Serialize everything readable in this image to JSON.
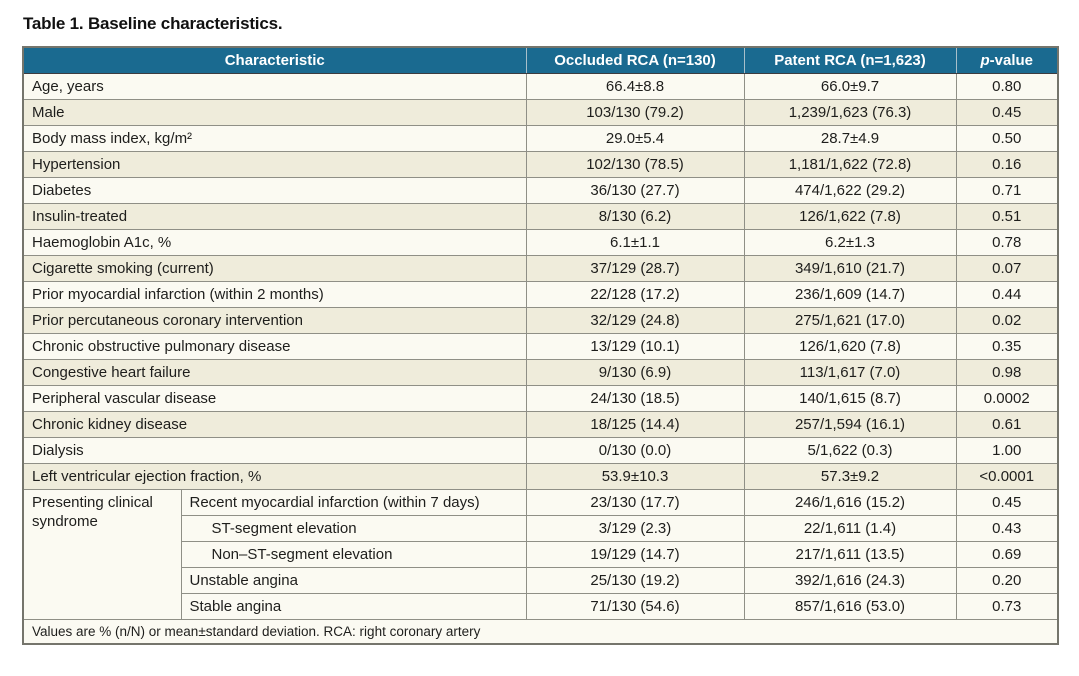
{
  "title": "Table 1. Baseline characteristics.",
  "colors": {
    "header_bg": "#1a6a90",
    "header_text": "#ffffff",
    "row_white": "#fbfaf2",
    "row_cream": "#efecdb",
    "border": "#8f8f86"
  },
  "table": {
    "headers": {
      "characteristic": "Characteristic",
      "occluded": "Occluded RCA (n=130)",
      "patent": "Patent RCA (n=1,623)",
      "pvalue_prefix": "p",
      "pvalue_suffix": "-value"
    },
    "rows": [
      {
        "label": "Age, years",
        "occluded": "66.4±8.8",
        "patent": "66.0±9.7",
        "p": "0.80"
      },
      {
        "label": "Male",
        "occluded": "103/130 (79.2)",
        "patent": "1,239/1,623 (76.3)",
        "p": "0.45"
      },
      {
        "label": "Body mass index, kg/m²",
        "occluded": "29.0±5.4",
        "patent": "28.7±4.9",
        "p": "0.50"
      },
      {
        "label": "Hypertension",
        "occluded": "102/130 (78.5)",
        "patent": "1,181/1,622 (72.8)",
        "p": "0.16"
      },
      {
        "label": "Diabetes",
        "occluded": "36/130 (27.7)",
        "patent": "474/1,622 (29.2)",
        "p": "0.71"
      },
      {
        "label": "Insulin-treated",
        "occluded": "8/130 (6.2)",
        "patent": "126/1,622 (7.8)",
        "p": "0.51"
      },
      {
        "label": "Haemoglobin A1c, %",
        "occluded": "6.1±1.1",
        "patent": "6.2±1.3",
        "p": "0.78"
      },
      {
        "label": "Cigarette smoking (current)",
        "occluded": "37/129 (28.7)",
        "patent": "349/1,610 (21.7)",
        "p": "0.07"
      },
      {
        "label": "Prior myocardial infarction (within 2 months)",
        "occluded": "22/128 (17.2)",
        "patent": "236/1,609 (14.7)",
        "p": "0.44"
      },
      {
        "label": "Prior percutaneous coronary intervention",
        "occluded": "32/129 (24.8)",
        "patent": "275/1,621 (17.0)",
        "p": "0.02"
      },
      {
        "label": "Chronic obstructive pulmonary disease",
        "occluded": "13/129 (10.1)",
        "patent": "126/1,620 (7.8)",
        "p": "0.35"
      },
      {
        "label": "Congestive heart failure",
        "occluded": "9/130 (6.9)",
        "patent": "113/1,617 (7.0)",
        "p": "0.98"
      },
      {
        "label": "Peripheral vascular disease",
        "occluded": "24/130 (18.5)",
        "patent": "140/1,615 (8.7)",
        "p": "0.0002"
      },
      {
        "label": "Chronic kidney disease",
        "occluded": "18/125 (14.4)",
        "patent": "257/1,594 (16.1)",
        "p": "0.61"
      },
      {
        "label": "Dialysis",
        "occluded": "0/130 (0.0)",
        "patent": "5/1,622 (0.3)",
        "p": "1.00"
      },
      {
        "label": "Left ventricular ejection fraction, %",
        "occluded": "53.9±10.3",
        "patent": "57.3±9.2",
        "p": "<0.0001"
      }
    ],
    "group": {
      "label": "Presenting clinical syndrome",
      "rows": [
        {
          "label": "Recent myocardial infarction (within 7 days)",
          "occluded": "23/130 (17.7)",
          "patent": "246/1,616 (15.2)",
          "p": "0.45"
        },
        {
          "label": "ST-segment elevation",
          "occluded": "3/129 (2.3)",
          "patent": "22/1,611 (1.4)",
          "p": "0.43"
        },
        {
          "label": "Non–ST-segment elevation",
          "occluded": "19/129 (14.7)",
          "patent": "217/1,611 (13.5)",
          "p": "0.69"
        },
        {
          "label": "Unstable angina",
          "occluded": "25/130 (19.2)",
          "patent": "392/1,616 (24.3)",
          "p": "0.20"
        },
        {
          "label": "Stable angina",
          "occluded": "71/130 (54.6)",
          "patent": "857/1,616 (53.0)",
          "p": "0.73"
        }
      ]
    },
    "footnote": "Values are % (n/N) or mean±standard deviation. RCA: right coronary artery"
  }
}
